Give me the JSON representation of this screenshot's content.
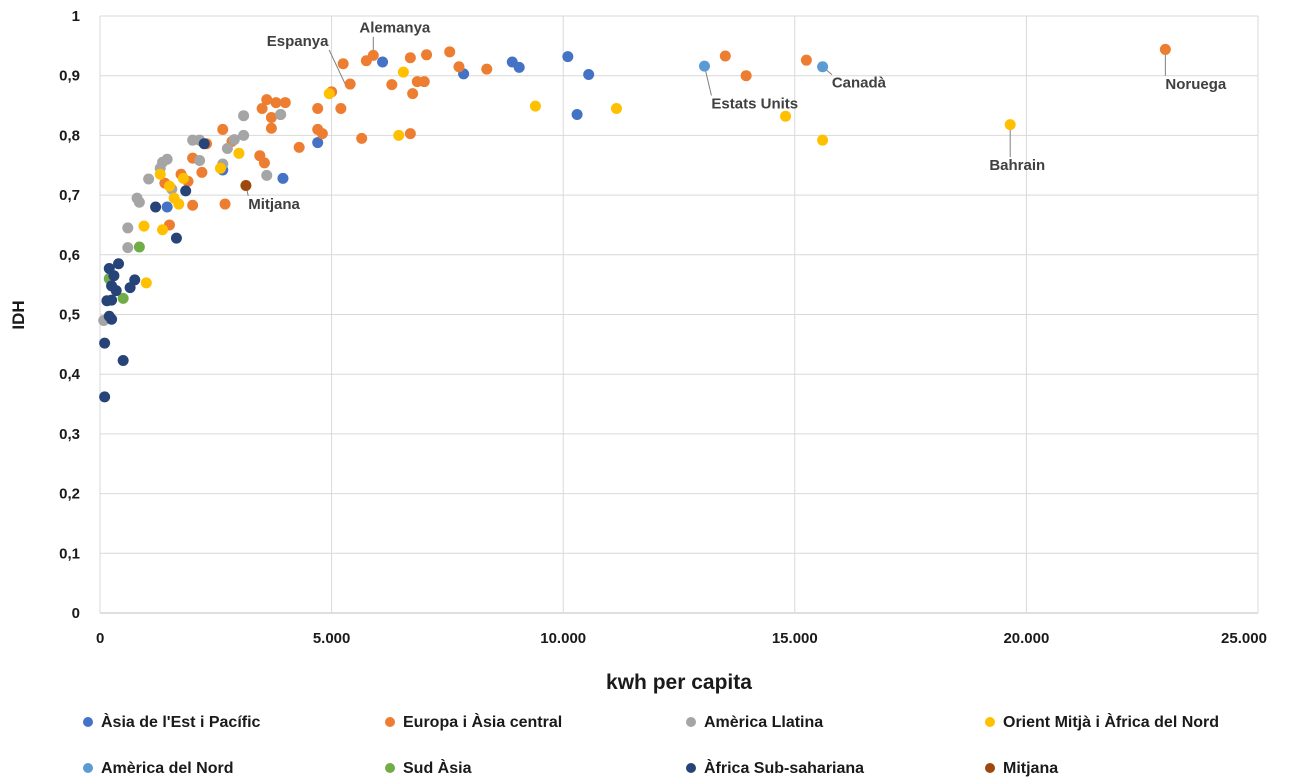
{
  "chart_data": {
    "type": "scatter",
    "title": "",
    "xlabel": "kwh per capita",
    "ylabel": "IDH",
    "xlim": [
      0,
      25000
    ],
    "ylim": [
      0,
      1
    ],
    "x_ticks": [
      "0",
      "5.000",
      "10.000",
      "15.000",
      "20.000",
      "25.000"
    ],
    "y_ticks": [
      "0",
      "0,1",
      "0,2",
      "0,3",
      "0,4",
      "0,5",
      "0,6",
      "0,7",
      "0,8",
      "0,9",
      "1"
    ],
    "grid": "vertical and horizontal major gridlines",
    "legend_position": "bottom",
    "series": [
      {
        "name": "Àsia de l'Est i Pacífic",
        "color": "#4472c4",
        "points": [
          [
            8900,
            0.923
          ],
          [
            9050,
            0.914
          ],
          [
            10100,
            0.932
          ],
          [
            10550,
            0.902
          ],
          [
            10300,
            0.835
          ],
          [
            6100,
            0.923
          ],
          [
            7850,
            0.903
          ],
          [
            4700,
            0.788
          ],
          [
            3950,
            0.728
          ],
          [
            2650,
            0.742
          ],
          [
            1450,
            0.68
          ]
        ]
      },
      {
        "name": "Europa i Àsia central",
        "color": "#ed7d31",
        "points": [
          [
            23000,
            0.944
          ],
          [
            13500,
            0.933
          ],
          [
            13950,
            0.9
          ],
          [
            15250,
            0.926
          ],
          [
            7550,
            0.94
          ],
          [
            5900,
            0.934
          ],
          [
            7050,
            0.935
          ],
          [
            6700,
            0.93
          ],
          [
            5750,
            0.925
          ],
          [
            5250,
            0.92
          ],
          [
            7750,
            0.915
          ],
          [
            8350,
            0.911
          ],
          [
            6850,
            0.89
          ],
          [
            7000,
            0.89
          ],
          [
            6300,
            0.885
          ],
          [
            6750,
            0.87
          ],
          [
            5400,
            0.886
          ],
          [
            5000,
            0.873
          ],
          [
            3600,
            0.86
          ],
          [
            4000,
            0.855
          ],
          [
            3800,
            0.855
          ],
          [
            3500,
            0.845
          ],
          [
            4700,
            0.845
          ],
          [
            5200,
            0.845
          ],
          [
            3900,
            0.835
          ],
          [
            3700,
            0.83
          ],
          [
            3700,
            0.812
          ],
          [
            4700,
            0.81
          ],
          [
            6700,
            0.803
          ],
          [
            4800,
            0.803
          ],
          [
            2650,
            0.81
          ],
          [
            2850,
            0.79
          ],
          [
            5650,
            0.795
          ],
          [
            4300,
            0.78
          ],
          [
            3450,
            0.766
          ],
          [
            3550,
            0.754
          ],
          [
            2300,
            0.786
          ],
          [
            2000,
            0.762
          ],
          [
            1750,
            0.735
          ],
          [
            2200,
            0.738
          ],
          [
            1400,
            0.72
          ],
          [
            1900,
            0.723
          ],
          [
            1500,
            0.65
          ],
          [
            2000,
            0.683
          ],
          [
            2700,
            0.685
          ]
        ]
      },
      {
        "name": "Amèrica Llatina",
        "color": "#a5a5a5",
        "points": [
          [
            3100,
            0.833
          ],
          [
            3900,
            0.835
          ],
          [
            3100,
            0.8
          ],
          [
            2900,
            0.793
          ],
          [
            2000,
            0.792
          ],
          [
            2150,
            0.792
          ],
          [
            2750,
            0.778
          ],
          [
            2650,
            0.752
          ],
          [
            2150,
            0.758
          ],
          [
            1450,
            0.76
          ],
          [
            1350,
            0.755
          ],
          [
            1300,
            0.745
          ],
          [
            1050,
            0.727
          ],
          [
            3600,
            0.733
          ],
          [
            1550,
            0.71
          ],
          [
            800,
            0.695
          ],
          [
            850,
            0.688
          ],
          [
            600,
            0.645
          ],
          [
            600,
            0.612
          ],
          [
            80,
            0.49
          ]
        ]
      },
      {
        "name": "Orient Mitjà i Àfrica del Nord",
        "color": "#ffc000",
        "points": [
          [
            19650,
            0.818
          ],
          [
            15600,
            0.792
          ],
          [
            14800,
            0.832
          ],
          [
            11150,
            0.845
          ],
          [
            9400,
            0.849
          ],
          [
            6550,
            0.906
          ],
          [
            4950,
            0.87
          ],
          [
            6450,
            0.8
          ],
          [
            3000,
            0.77
          ],
          [
            2600,
            0.745
          ],
          [
            1300,
            0.735
          ],
          [
            1500,
            0.715
          ],
          [
            1800,
            0.728
          ],
          [
            1600,
            0.695
          ],
          [
            1700,
            0.685
          ],
          [
            950,
            0.648
          ],
          [
            1350,
            0.642
          ],
          [
            1000,
            0.553
          ]
        ]
      },
      {
        "name": "Amèrica del Nord",
        "color": "#5b9bd5",
        "points": [
          [
            13050,
            0.916
          ],
          [
            15600,
            0.915
          ]
        ]
      },
      {
        "name": "Sud Àsia",
        "color": "#70ad47",
        "points": [
          [
            850,
            0.613
          ],
          [
            500,
            0.527
          ],
          [
            200,
            0.56
          ]
        ]
      },
      {
        "name": "Àfrica Sub-sahariana",
        "color": "#264478",
        "points": [
          [
            2250,
            0.786
          ],
          [
            1850,
            0.707
          ],
          [
            1200,
            0.68
          ],
          [
            1650,
            0.628
          ],
          [
            400,
            0.585
          ],
          [
            200,
            0.577
          ],
          [
            300,
            0.565
          ],
          [
            750,
            0.558
          ],
          [
            650,
            0.545
          ],
          [
            250,
            0.548
          ],
          [
            350,
            0.54
          ],
          [
            150,
            0.523
          ],
          [
            250,
            0.524
          ],
          [
            200,
            0.497
          ],
          [
            250,
            0.492
          ],
          [
            100,
            0.452
          ],
          [
            500,
            0.423
          ],
          [
            100,
            0.362
          ]
        ]
      },
      {
        "name": "Mitjana",
        "color": "#9e480e",
        "points": [
          [
            3150,
            0.716
          ]
        ]
      }
    ],
    "annotations": [
      {
        "text": "Espanya",
        "point": [
          5300,
          0.885
        ],
        "label_at": [
          3600,
          0.95
        ]
      },
      {
        "text": "Alemanya",
        "point": [
          5900,
          0.932
        ],
        "label_at": [
          5600,
          0.972
        ]
      },
      {
        "text": "Estats Units",
        "point": [
          13050,
          0.916
        ],
        "label_at": [
          13200,
          0.845
        ]
      },
      {
        "text": "Canadà",
        "point": [
          15600,
          0.915
        ],
        "label_at": [
          15800,
          0.88
        ]
      },
      {
        "text": "Noruega",
        "point": [
          23000,
          0.944
        ],
        "label_at": [
          23000,
          0.878
        ]
      },
      {
        "text": "Bahrain",
        "point": [
          19650,
          0.818
        ],
        "label_at": [
          19200,
          0.742
        ]
      },
      {
        "text": "Mitjana",
        "point": [
          3150,
          0.716
        ],
        "label_at": [
          3200,
          0.677
        ]
      }
    ]
  }
}
